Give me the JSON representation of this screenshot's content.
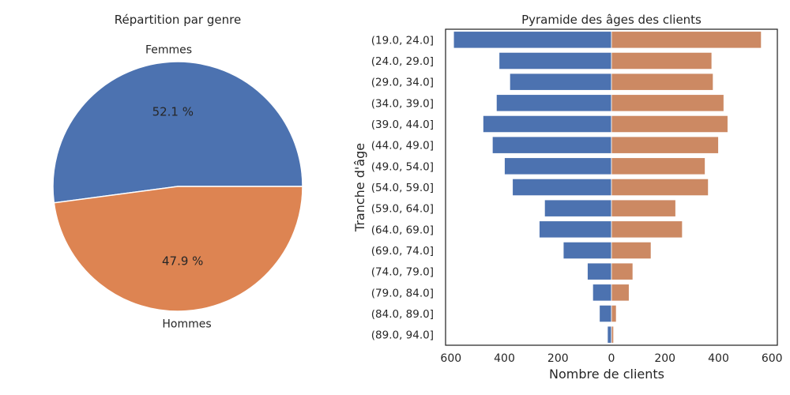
{
  "colors": {
    "blue": "#4c72b0",
    "orange": "#dd8452",
    "orange_bars": "#cc8963"
  },
  "chart_data": [
    {
      "type": "pie",
      "title": "Répartition par genre",
      "slices": [
        {
          "label": "Femmes",
          "value": 52.1,
          "pct_label": "52.1 %",
          "color": "#4c72b0"
        },
        {
          "label": "Hommes",
          "value": 47.9,
          "pct_label": "47.9 %",
          "color": "#dd8452"
        }
      ]
    },
    {
      "type": "bar",
      "orientation": "horizontal",
      "title": "Pyramide des âges des clients",
      "xlabel": "Nombre de clients",
      "ylabel": "Tranche d'âge",
      "xlim": [
        -620,
        620
      ],
      "xticks": [
        -600,
        -400,
        -200,
        0,
        200,
        400,
        600
      ],
      "xtick_labels": [
        "600",
        "400",
        "200",
        "0",
        "200",
        "400",
        "600"
      ],
      "categories": [
        "(19.0, 24.0]",
        "(24.0, 29.0]",
        "(29.0, 34.0]",
        "(34.0, 39.0]",
        "(39.0, 44.0]",
        "(44.0, 49.0]",
        "(49.0, 54.0]",
        "(54.0, 59.0]",
        "(59.0, 64.0]",
        "(64.0, 69.0]",
        "(69.0, 74.0]",
        "(74.0, 79.0]",
        "(79.0, 84.0]",
        "(84.0, 89.0]",
        "(89.0, 94.0]"
      ],
      "series": [
        {
          "color": "#4c72b0",
          "values": [
            -590,
            -420,
            -380,
            -430,
            -480,
            -445,
            -400,
            -370,
            -250,
            -270,
            -180,
            -90,
            -70,
            -45,
            -15
          ]
        },
        {
          "color": "#cc8963",
          "values": [
            560,
            375,
            380,
            420,
            435,
            400,
            350,
            362,
            240,
            265,
            148,
            80,
            66,
            18,
            8
          ]
        }
      ]
    }
  ]
}
